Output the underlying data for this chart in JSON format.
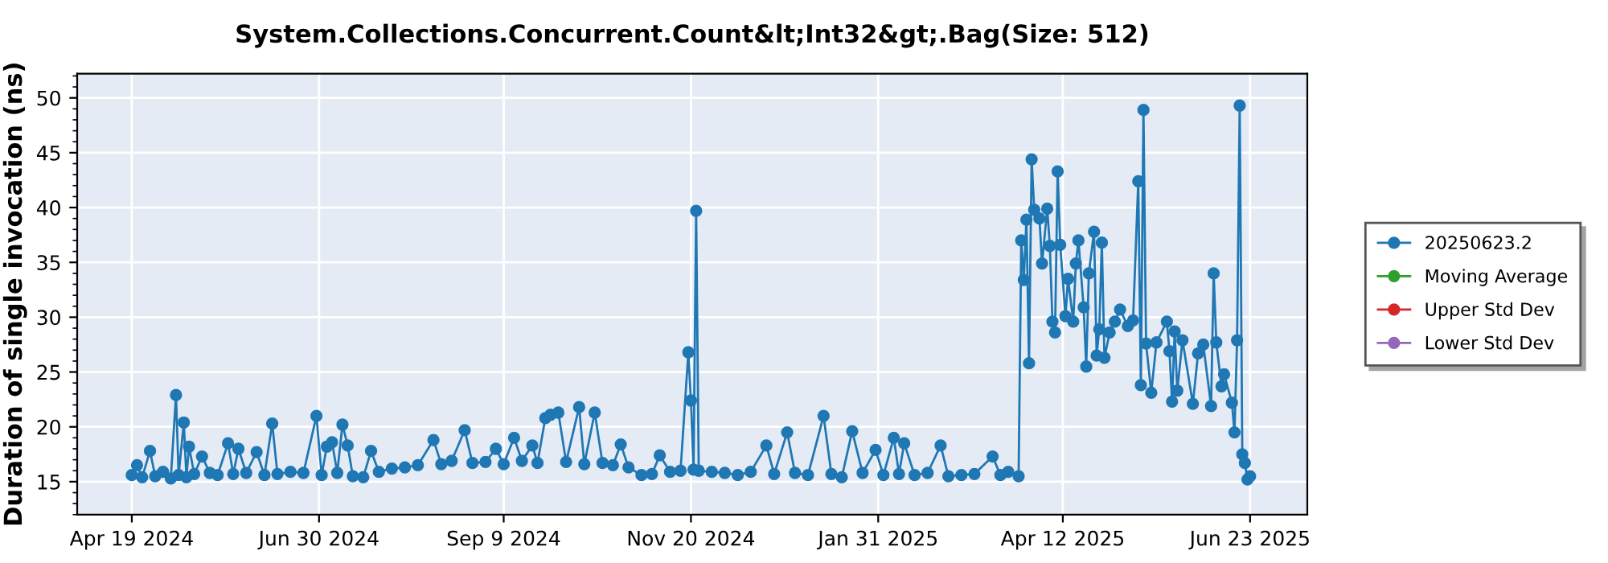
{
  "chart_data": {
    "type": "line",
    "title": "System.Collections.Concurrent.Count&lt;Int32&gt;.Bag(Size: 512)",
    "ylabel": "Duration of single invocation (ns)",
    "x": [
      "2024-04-19",
      "2024-04-21",
      "2024-04-23",
      "2024-04-26",
      "2024-04-28",
      "2024-05-01",
      "2024-05-04",
      "2024-05-06",
      "2024-05-07",
      "2024-05-09",
      "2024-05-10",
      "2024-05-11",
      "2024-05-13",
      "2024-05-16",
      "2024-05-19",
      "2024-05-22",
      "2024-05-26",
      "2024-05-28",
      "2024-05-30",
      "2024-06-02",
      "2024-06-06",
      "2024-06-09",
      "2024-06-12",
      "2024-06-14",
      "2024-06-19",
      "2024-06-24",
      "2024-06-29",
      "2024-07-01",
      "2024-07-03",
      "2024-07-05",
      "2024-07-07",
      "2024-07-09",
      "2024-07-11",
      "2024-07-13",
      "2024-07-17",
      "2024-07-20",
      "2024-07-23",
      "2024-07-28",
      "2024-08-02",
      "2024-08-07",
      "2024-08-13",
      "2024-08-16",
      "2024-08-20",
      "2024-08-25",
      "2024-08-28",
      "2024-09-02",
      "2024-09-06",
      "2024-09-09",
      "2024-09-13",
      "2024-09-16",
      "2024-09-20",
      "2024-09-22",
      "2024-09-25",
      "2024-09-27",
      "2024-09-30",
      "2024-10-03",
      "2024-10-08",
      "2024-10-10",
      "2024-10-14",
      "2024-10-17",
      "2024-10-21",
      "2024-10-24",
      "2024-10-27",
      "2024-11-01",
      "2024-11-05",
      "2024-11-08",
      "2024-11-12",
      "2024-11-16",
      "2024-11-19",
      "2024-11-20",
      "2024-11-21",
      "2024-11-22",
      "2024-11-23",
      "2024-11-28",
      "2024-12-03",
      "2024-12-08",
      "2024-12-13",
      "2024-12-19",
      "2024-12-22",
      "2024-12-27",
      "2024-12-30",
      "2025-01-04",
      "2025-01-10",
      "2025-01-13",
      "2025-01-17",
      "2025-01-21",
      "2025-01-25",
      "2025-01-30",
      "2025-02-02",
      "2025-02-06",
      "2025-02-08",
      "2025-02-10",
      "2025-02-14",
      "2025-02-19",
      "2025-02-24",
      "2025-02-27",
      "2025-03-04",
      "2025-03-09",
      "2025-03-16",
      "2025-03-19",
      "2025-03-22",
      "2025-03-26",
      "2025-03-27",
      "2025-03-28",
      "2025-03-29",
      "2025-03-30",
      "2025-03-31",
      "2025-04-01",
      "2025-04-03",
      "2025-04-04",
      "2025-04-06",
      "2025-04-07",
      "2025-04-08",
      "2025-04-09",
      "2025-04-10",
      "2025-04-11",
      "2025-04-13",
      "2025-04-14",
      "2025-04-16",
      "2025-04-17",
      "2025-04-18",
      "2025-04-20",
      "2025-04-21",
      "2025-04-22",
      "2025-04-24",
      "2025-04-25",
      "2025-04-26",
      "2025-04-27",
      "2025-04-28",
      "2025-04-30",
      "2025-05-02",
      "2025-05-04",
      "2025-05-07",
      "2025-05-09",
      "2025-05-11",
      "2025-05-12",
      "2025-05-13",
      "2025-05-14",
      "2025-05-16",
      "2025-05-18",
      "2025-05-22",
      "2025-05-23",
      "2025-05-24",
      "2025-05-25",
      "2025-05-26",
      "2025-05-28",
      "2025-06-01",
      "2025-06-03",
      "2025-06-05",
      "2025-06-08",
      "2025-06-09",
      "2025-06-10",
      "2025-06-12",
      "2025-06-13",
      "2025-06-16",
      "2025-06-17",
      "2025-06-18",
      "2025-06-19",
      "2025-06-20",
      "2025-06-21",
      "2025-06-22",
      "2025-06-23"
    ],
    "series": [
      {
        "name": "20250623.2",
        "color": "#1f77b4",
        "values": [
          15.6,
          16.5,
          15.4,
          17.8,
          15.5,
          15.9,
          15.3,
          22.9,
          15.6,
          20.4,
          15.4,
          18.2,
          15.7,
          17.3,
          15.8,
          15.6,
          18.5,
          15.7,
          18.0,
          15.8,
          17.7,
          15.6,
          20.3,
          15.7,
          15.9,
          15.8,
          21.0,
          15.6,
          18.2,
          18.6,
          15.8,
          20.2,
          18.3,
          15.5,
          15.4,
          17.8,
          15.9,
          16.2,
          16.3,
          16.5,
          18.8,
          16.6,
          16.9,
          19.7,
          16.7,
          16.8,
          18.0,
          16.6,
          19.0,
          16.9,
          18.3,
          16.7,
          20.8,
          21.1,
          21.3,
          16.8,
          21.8,
          16.6,
          21.3,
          16.7,
          16.5,
          18.4,
          16.3,
          15.6,
          15.7,
          17.4,
          15.9,
          16.0,
          26.8,
          22.4,
          16.1,
          39.7,
          16.0,
          15.9,
          15.8,
          15.6,
          15.9,
          18.3,
          15.7,
          19.5,
          15.8,
          15.6,
          21.0,
          15.7,
          15.4,
          19.6,
          15.8,
          17.9,
          15.6,
          19.0,
          15.7,
          18.5,
          15.6,
          15.8,
          18.3,
          15.5,
          15.6,
          15.7,
          17.3,
          15.6,
          15.9,
          15.5,
          37.0,
          33.4,
          38.9,
          25.8,
          44.4,
          39.8,
          39.0,
          34.9,
          39.9,
          36.5,
          29.6,
          28.6,
          43.3,
          36.6,
          30.1,
          33.5,
          29.6,
          34.9,
          37.0,
          30.9,
          25.5,
          34.0,
          37.8,
          26.5,
          28.9,
          36.8,
          26.3,
          28.6,
          29.6,
          30.7,
          29.2,
          29.7,
          42.4,
          23.8,
          48.9,
          27.6,
          23.1,
          27.7,
          29.6,
          26.9,
          22.3,
          28.7,
          23.3,
          27.9,
          22.1,
          26.7,
          27.5,
          21.9,
          34.0,
          27.7,
          23.7,
          24.8,
          22.2,
          19.5,
          27.9,
          49.3,
          17.5,
          16.7,
          15.2,
          15.5
        ]
      },
      {
        "name": "Moving Average",
        "color": "#2ca02c",
        "values": [
          null,
          null,
          null,
          null,
          null,
          null,
          null,
          null,
          null,
          null,
          null,
          null,
          null,
          null,
          null,
          null,
          null,
          null,
          null,
          null,
          null,
          null,
          null,
          null,
          null,
          null,
          null,
          null,
          null,
          null,
          null,
          null,
          null,
          null,
          null,
          null,
          null,
          null,
          null,
          null,
          null,
          null,
          null,
          null,
          null,
          null,
          null,
          null,
          null,
          null,
          null,
          null,
          null,
          null,
          null,
          null,
          null,
          null,
          null,
          null,
          null,
          null,
          null,
          null,
          null,
          null,
          null,
          null,
          null,
          null,
          null,
          null,
          null,
          null,
          null,
          null,
          null,
          null,
          null,
          null,
          null,
          null,
          null,
          null,
          null,
          null,
          null,
          null,
          null,
          null,
          null,
          null,
          null,
          null,
          null,
          null,
          null,
          null,
          null,
          null,
          null,
          null,
          null,
          null,
          null,
          null,
          null,
          null,
          null,
          null,
          null,
          null,
          null,
          null,
          null,
          null,
          null,
          null,
          null,
          null,
          null,
          null,
          null,
          null,
          null,
          null,
          null,
          null,
          null,
          null,
          null,
          null,
          null,
          null,
          null,
          null,
          null,
          null,
          null,
          null,
          null,
          null,
          null,
          null,
          null,
          null,
          null,
          null,
          null,
          null,
          null,
          null,
          null,
          null,
          null,
          null,
          null,
          null,
          null,
          null,
          null,
          null
        ]
      },
      {
        "name": "Upper Std Dev",
        "color": "#d62728",
        "values": [
          null,
          null,
          null,
          null,
          null,
          null,
          null,
          null,
          null,
          null,
          null,
          null,
          null,
          null,
          null,
          null,
          null,
          null,
          null,
          null,
          null,
          null,
          null,
          null,
          null,
          null,
          null,
          null,
          null,
          null,
          null,
          null,
          null,
          null,
          null,
          null,
          null,
          null,
          null,
          null,
          null,
          null,
          null,
          null,
          null,
          null,
          null,
          null,
          null,
          null,
          null,
          null,
          null,
          null,
          null,
          null,
          null,
          null,
          null,
          null,
          null,
          null,
          null,
          null,
          null,
          null,
          null,
          null,
          null,
          null,
          null,
          null,
          null,
          null,
          null,
          null,
          null,
          null,
          null,
          null,
          null,
          null,
          null,
          null,
          null,
          null,
          null,
          null,
          null,
          null,
          null,
          null,
          null,
          null,
          null,
          null,
          null,
          null,
          null,
          null,
          null,
          null,
          null,
          null,
          null,
          null,
          null,
          null,
          null,
          null,
          null,
          null,
          null,
          null,
          null,
          null,
          null,
          null,
          null,
          null,
          null,
          null,
          null,
          null,
          null,
          null,
          null,
          null,
          null,
          null,
          null,
          null,
          null,
          null,
          null,
          null,
          null,
          null,
          null,
          null,
          null,
          null,
          null,
          null,
          null,
          null,
          null,
          null,
          null,
          null,
          null,
          null,
          null,
          null,
          null,
          null,
          null,
          null,
          null,
          null,
          null,
          null
        ]
      },
      {
        "name": "Lower Std Dev",
        "color": "#9467bd",
        "values": [
          null,
          null,
          null,
          null,
          null,
          null,
          null,
          null,
          null,
          null,
          null,
          null,
          null,
          null,
          null,
          null,
          null,
          null,
          null,
          null,
          null,
          null,
          null,
          null,
          null,
          null,
          null,
          null,
          null,
          null,
          null,
          null,
          null,
          null,
          null,
          null,
          null,
          null,
          null,
          null,
          null,
          null,
          null,
          null,
          null,
          null,
          null,
          null,
          null,
          null,
          null,
          null,
          null,
          null,
          null,
          null,
          null,
          null,
          null,
          null,
          null,
          null,
          null,
          null,
          null,
          null,
          null,
          null,
          null,
          null,
          null,
          null,
          null,
          null,
          null,
          null,
          null,
          null,
          null,
          null,
          null,
          null,
          null,
          null,
          null,
          null,
          null,
          null,
          null,
          null,
          null,
          null,
          null,
          null,
          null,
          null,
          null,
          null,
          null,
          null,
          null,
          null,
          null,
          null,
          null,
          null,
          null,
          null,
          null,
          null,
          null,
          null,
          null,
          null,
          null,
          null,
          null,
          null,
          null,
          null,
          null,
          null,
          null,
          null,
          null,
          null,
          null,
          null,
          null,
          null,
          null,
          null,
          null,
          null,
          null,
          null,
          null,
          null,
          null,
          null,
          null,
          null,
          null,
          null,
          null,
          null,
          null,
          null,
          null,
          null,
          null,
          null,
          null,
          null,
          null,
          null,
          null,
          null,
          null,
          null,
          null,
          null
        ]
      }
    ],
    "xlim": [
      "2024-03-29",
      "2025-07-15"
    ],
    "xticks": [
      {
        "value": "2024-04-19",
        "label": "Apr 19 2024"
      },
      {
        "value": "2024-06-30",
        "label": "Jun 30 2024"
      },
      {
        "value": "2024-09-09",
        "label": "Sep 9 2024"
      },
      {
        "value": "2024-11-20",
        "label": "Nov 20 2024"
      },
      {
        "value": "2025-01-31",
        "label": "Jan 31 2025"
      },
      {
        "value": "2025-04-12",
        "label": "Apr 12 2025"
      },
      {
        "value": "2025-06-23",
        "label": "Jun 23 2025"
      }
    ],
    "ylim": [
      12,
      52.2
    ],
    "yticks": [
      15,
      20,
      25,
      30,
      35,
      40,
      45,
      50
    ],
    "grid": true,
    "legend": "right",
    "marker": "circle",
    "line_style": "solid"
  }
}
